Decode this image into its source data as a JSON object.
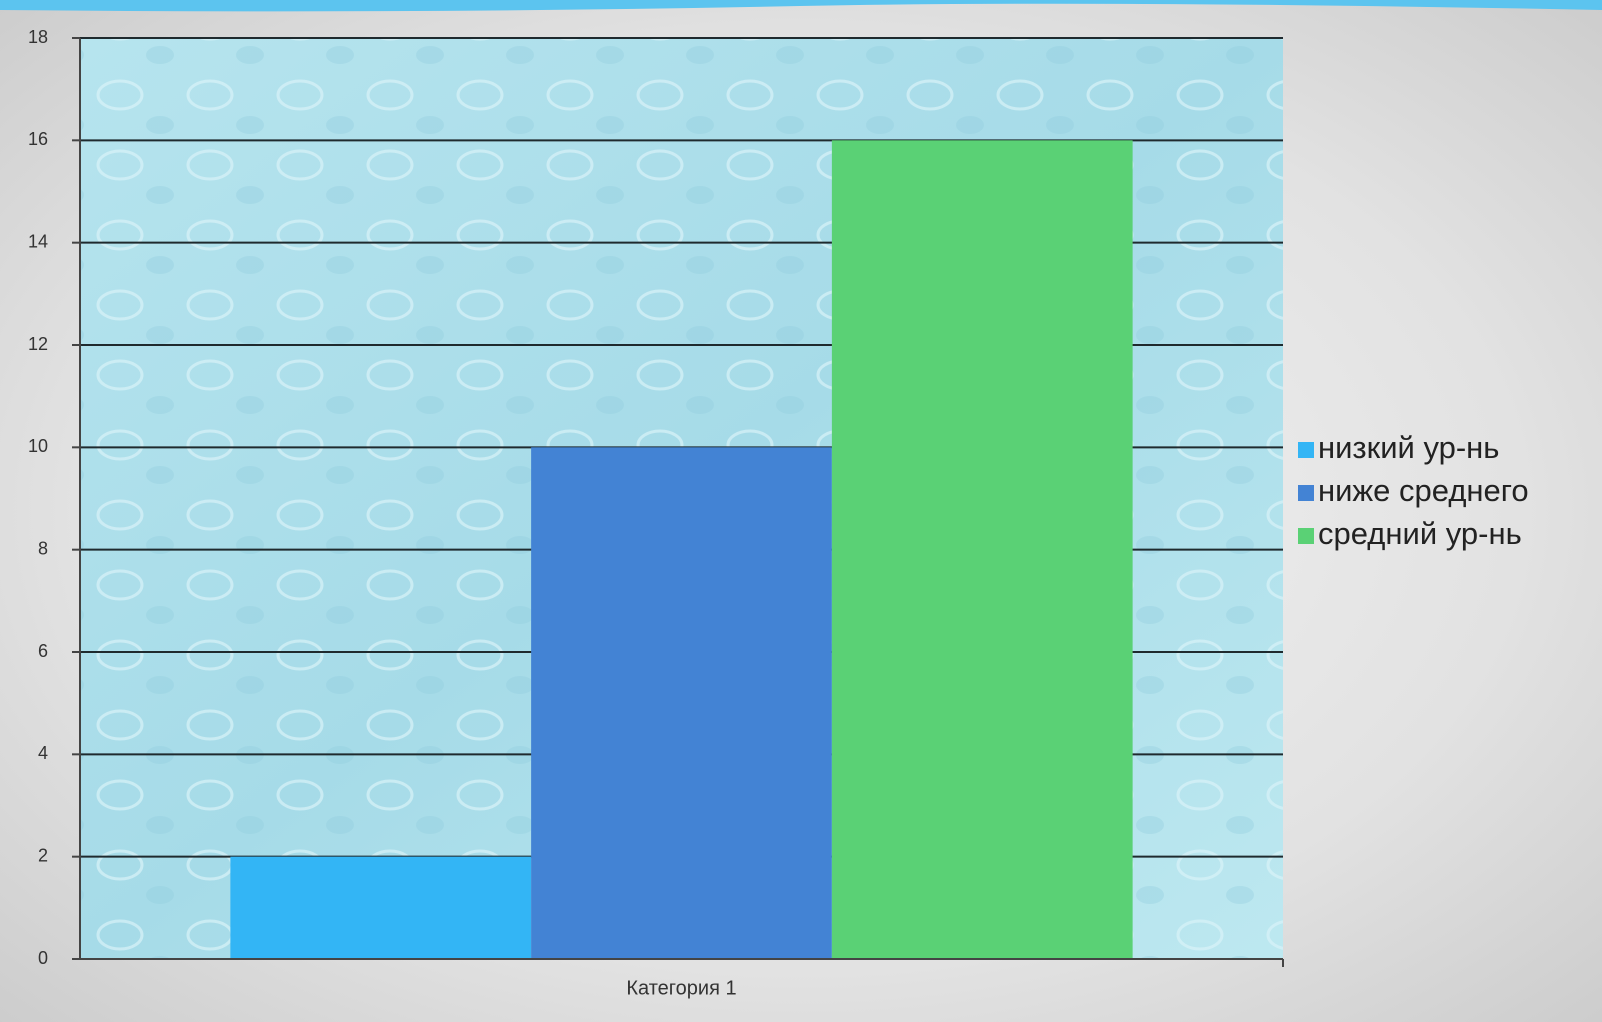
{
  "chart_data": {
    "type": "bar",
    "categories": [
      "Категория 1"
    ],
    "series": [
      {
        "name": "низкий ур-нь",
        "color": "#33b5f5",
        "values": [
          2
        ]
      },
      {
        "name": "ниже среднего",
        "color": "#4383d4",
        "values": [
          10
        ]
      },
      {
        "name": "средний ур-нь",
        "color": "#5ad175",
        "values": [
          16
        ]
      }
    ],
    "ylim": [
      0,
      18
    ],
    "yticks": [
      0,
      2,
      4,
      6,
      8,
      10,
      12,
      14,
      16,
      18
    ],
    "grid": true,
    "legend": "right"
  }
}
